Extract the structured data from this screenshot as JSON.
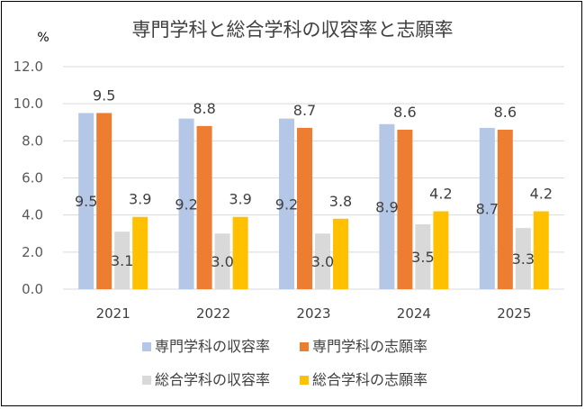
{
  "chart_data": {
    "type": "bar",
    "title": "専門学科と総合学科の収容率と志願率",
    "unit_label": "%",
    "categories": [
      "2021",
      "2022",
      "2023",
      "2024",
      "2025"
    ],
    "ylim": [
      0,
      12
    ],
    "yticks": [
      "0.0",
      "2.0",
      "4.0",
      "6.0",
      "8.0",
      "10.0",
      "12.0"
    ],
    "grid": true,
    "legend_position": "bottom",
    "series": [
      {
        "name": "専門学科の収容率",
        "color": "#b4c7e7",
        "values": [
          9.5,
          9.2,
          9.2,
          8.9,
          8.7
        ],
        "labels": [
          "9.5",
          "9.2",
          "9.2",
          "8.9",
          "8.7"
        ]
      },
      {
        "name": "専門学科の志願率",
        "color": "#ed7d31",
        "values": [
          9.5,
          8.8,
          8.7,
          8.6,
          8.6
        ],
        "labels": [
          "9.5",
          "8.8",
          "8.7",
          "8.6",
          "8.6"
        ]
      },
      {
        "name": "総合学科の収容率",
        "color": "#d9d9d9",
        "values": [
          3.1,
          3.0,
          3.0,
          3.5,
          3.3
        ],
        "labels": [
          "3.1",
          "3.0",
          "3.0",
          "3.5",
          "3.3"
        ]
      },
      {
        "name": "総合学科の志願率",
        "color": "#ffc000",
        "values": [
          3.9,
          3.9,
          3.8,
          4.2,
          4.2
        ],
        "labels": [
          "3.9",
          "3.9",
          "3.8",
          "4.2",
          "4.2"
        ]
      }
    ]
  }
}
